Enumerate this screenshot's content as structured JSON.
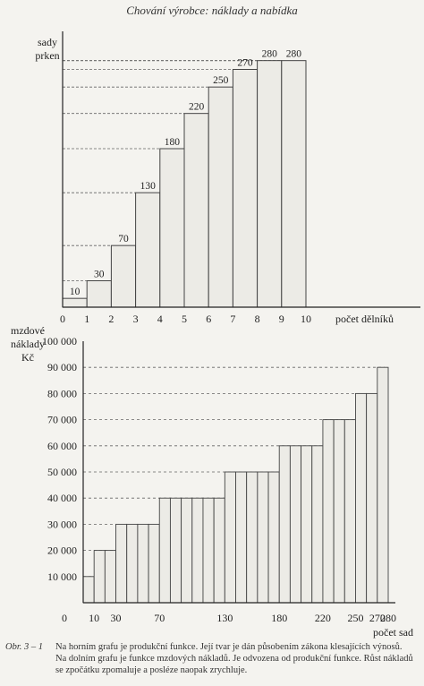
{
  "page": {
    "title": "Chování výrobce: náklady a nabídka"
  },
  "chart_data": [
    {
      "type": "bar",
      "ylabel_lines": [
        "sady",
        "prken"
      ],
      "xlabel": "počet dělníků",
      "x_ticks": [
        "0",
        "1",
        "2",
        "3",
        "4",
        "5",
        "6",
        "7",
        "8",
        "9",
        "10"
      ],
      "values": [
        10,
        30,
        70,
        130,
        180,
        220,
        250,
        270,
        280,
        280
      ],
      "data_labels": [
        "10",
        "30",
        "70",
        "130",
        "180",
        "220",
        "250",
        "270",
        "280",
        "280"
      ],
      "xlim": [
        0,
        10
      ],
      "ylim": [
        0,
        300
      ],
      "reference_lines": "dashed horizontal lines from each bar top to the y-axis"
    },
    {
      "type": "bar",
      "ylabel_lines": [
        "mzdové",
        "náklady",
        "Kč"
      ],
      "xlabel": "počet sad",
      "y_ticks": [
        "10 000",
        "20 000",
        "30 000",
        "40 000",
        "50 000",
        "60 000",
        "70 000",
        "80 000",
        "90 000",
        "100 000"
      ],
      "x_ticks": [
        "0",
        "10",
        "30",
        "70",
        "130",
        "180",
        "220",
        "250",
        "270",
        "280"
      ],
      "x_tick_values": [
        0,
        10,
        30,
        70,
        130,
        180,
        220,
        250,
        270,
        280
      ],
      "steps": [
        {
          "from": 0,
          "to": 10,
          "value": 10000
        },
        {
          "from": 10,
          "to": 30,
          "value": 20000
        },
        {
          "from": 30,
          "to": 70,
          "value": 30000
        },
        {
          "from": 70,
          "to": 130,
          "value": 40000
        },
        {
          "from": 130,
          "to": 180,
          "value": 50000
        },
        {
          "from": 180,
          "to": 220,
          "value": 60000
        },
        {
          "from": 220,
          "to": 250,
          "value": 70000
        },
        {
          "from": 250,
          "to": 270,
          "value": 80000
        },
        {
          "from": 270,
          "to": 280,
          "value": 90000
        }
      ],
      "ylim": [
        0,
        100000
      ],
      "reference_lines": "dashed horizontal gridlines at each y tick"
    }
  ],
  "caption": {
    "ref": "Obr. 3 – 1",
    "text": "Na horním grafu je produkční funkce. Její tvar je dán působením zákona klesajících výnosů. Na dolním grafu je funkce mzdových nákladů. Je odvozena od produkční funkce. Růst nákladů se zpočátku zpomaluje a posléze naopak zrychluje."
  }
}
